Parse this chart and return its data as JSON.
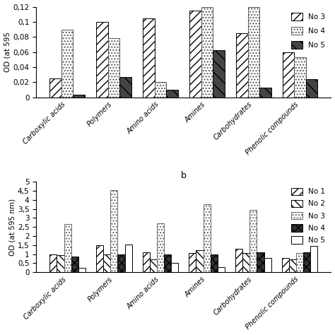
{
  "top": {
    "ylabel": "OD (at 595",
    "ylim": [
      0,
      0.12
    ],
    "yticks": [
      0,
      0.02,
      0.04,
      0.06,
      0.08,
      0.1,
      0.12
    ],
    "ytick_labels": [
      "0",
      "0,02",
      "0,04",
      "0,06",
      "0,08",
      "0,1",
      "0,12"
    ],
    "categories": [
      "Carboxylic acids",
      "Polymers",
      "Amino acids",
      "Amines",
      "Carbohydrates",
      "Phenolic compounds"
    ],
    "series": {
      "No 3": [
        0.025,
        0.1,
        0.105,
        0.115,
        0.085,
        0.06
      ],
      "No 4": [
        0.09,
        0.078,
        0.02,
        0.12,
        0.12,
        0.053
      ],
      "No 5": [
        0.003,
        0.027,
        0.01,
        0.062,
        0.013,
        0.024
      ]
    },
    "legend_labels": [
      "No 3",
      "No 4",
      "No 5"
    ]
  },
  "bottom": {
    "title": "b",
    "ylabel": "OD (at 595 nm)",
    "ylim": [
      0,
      5
    ],
    "yticks": [
      0,
      0.5,
      1,
      1.5,
      2,
      2.5,
      3,
      3.5,
      4,
      4.5,
      5
    ],
    "ytick_labels": [
      "0",
      "0,5",
      "1",
      "1,5",
      "2",
      "2,5",
      "3",
      "3,5",
      "4",
      "4,5",
      "5"
    ],
    "categories": [
      "Carboxylic acids",
      "Polymers",
      "Amino acids",
      "Amines",
      "Carbohydrates",
      "Phenolic compounds"
    ],
    "series": {
      "No 1": [
        1.0,
        1.5,
        1.1,
        1.05,
        1.3,
        0.8
      ],
      "No 2": [
        0.95,
        1.0,
        0.7,
        1.2,
        1.05,
        0.7
      ],
      "No 3": [
        2.65,
        4.55,
        2.7,
        3.75,
        3.45,
        1.05
      ],
      "No 4": [
        0.85,
        0.97,
        1.0,
        1.0,
        1.1,
        1.1
      ],
      "No 5": [
        0.25,
        1.55,
        0.5,
        0.3,
        0.8,
        1.45
      ]
    },
    "legend_labels": [
      "No 1",
      "No 2",
      "No 3",
      "No 4",
      "No 5"
    ]
  }
}
